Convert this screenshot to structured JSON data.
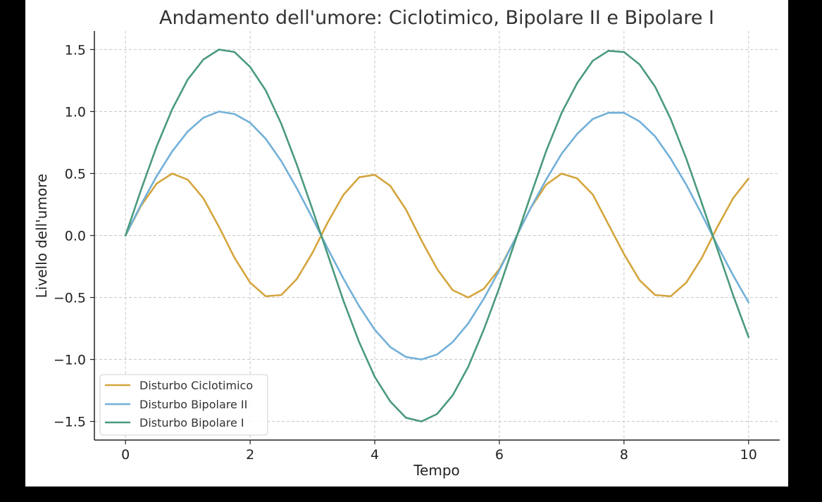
{
  "chart_data": {
    "type": "line",
    "title": "Andamento dell'umore: Ciclotimico, Bipolare II e Bipolare I",
    "xlabel": "Tempo",
    "ylabel": "Livello dell'umore",
    "xlim": [
      -0.5,
      10.5
    ],
    "ylim": [
      -1.65,
      1.65
    ],
    "xticks": [
      0,
      2,
      4,
      6,
      8,
      10
    ],
    "xtick_labels": [
      "0",
      "2",
      "4",
      "6",
      "8",
      "10"
    ],
    "yticks": [
      1.5,
      1.0,
      0.5,
      0.0,
      -0.5,
      -1.0,
      -1.5
    ],
    "ytick_labels": [
      "1.5",
      "1.0",
      "0.5",
      "0.0",
      "−0.5",
      "−1.0",
      "−1.5"
    ],
    "grid": true,
    "legend_position": "lower-left",
    "x": [
      0,
      0.25,
      0.5,
      0.75,
      1,
      1.25,
      1.5,
      1.75,
      2,
      2.25,
      2.5,
      2.75,
      3,
      3.25,
      3.5,
      3.75,
      4,
      4.25,
      4.5,
      4.75,
      5,
      5.25,
      5.5,
      5.75,
      6,
      6.25,
      6.5,
      6.75,
      7,
      7.25,
      7.5,
      7.75,
      8,
      8.25,
      8.5,
      8.75,
      9,
      9.25,
      9.5,
      9.75,
      10
    ],
    "series": [
      {
        "name": "Disturbo Ciclotimico",
        "color": "#d4a53c",
        "values": [
          0,
          0.24,
          0.42,
          0.5,
          0.45,
          0.3,
          0.07,
          -0.18,
          -0.38,
          -0.49,
          -0.48,
          -0.35,
          -0.14,
          0.11,
          0.33,
          0.47,
          0.49,
          0.4,
          0.21,
          -0.04,
          -0.27,
          -0.44,
          -0.5,
          -0.43,
          -0.27,
          -0.03,
          0.22,
          0.41,
          0.5,
          0.46,
          0.33,
          0.09,
          -0.15,
          -0.36,
          -0.48,
          -0.49,
          -0.38,
          -0.18,
          0.07,
          0.3,
          0.46
        ]
      },
      {
        "name": "Disturbo Bipolare II",
        "color": "#72b0d8",
        "values": [
          0,
          0.25,
          0.48,
          0.68,
          0.84,
          0.95,
          1.0,
          0.98,
          0.91,
          0.78,
          0.6,
          0.38,
          0.14,
          -0.11,
          -0.35,
          -0.57,
          -0.76,
          -0.9,
          -0.98,
          -1.0,
          -0.96,
          -0.86,
          -0.71,
          -0.51,
          -0.28,
          -0.03,
          0.22,
          0.45,
          0.66,
          0.82,
          0.94,
          0.99,
          0.99,
          0.92,
          0.8,
          0.62,
          0.41,
          0.17,
          -0.08,
          -0.32,
          -0.54
        ]
      },
      {
        "name": "Disturbo Bipolare I",
        "color": "#4a9a7c",
        "values": [
          0,
          0.37,
          0.72,
          1.02,
          1.26,
          1.42,
          1.5,
          1.48,
          1.36,
          1.17,
          0.9,
          0.57,
          0.21,
          -0.16,
          -0.53,
          -0.86,
          -1.14,
          -1.34,
          -1.47,
          -1.5,
          -1.44,
          -1.29,
          -1.06,
          -0.76,
          -0.42,
          -0.05,
          0.32,
          0.68,
          0.99,
          1.23,
          1.41,
          1.49,
          1.48,
          1.38,
          1.2,
          0.94,
          0.62,
          0.26,
          -0.11,
          -0.48,
          -0.82
        ]
      }
    ]
  }
}
